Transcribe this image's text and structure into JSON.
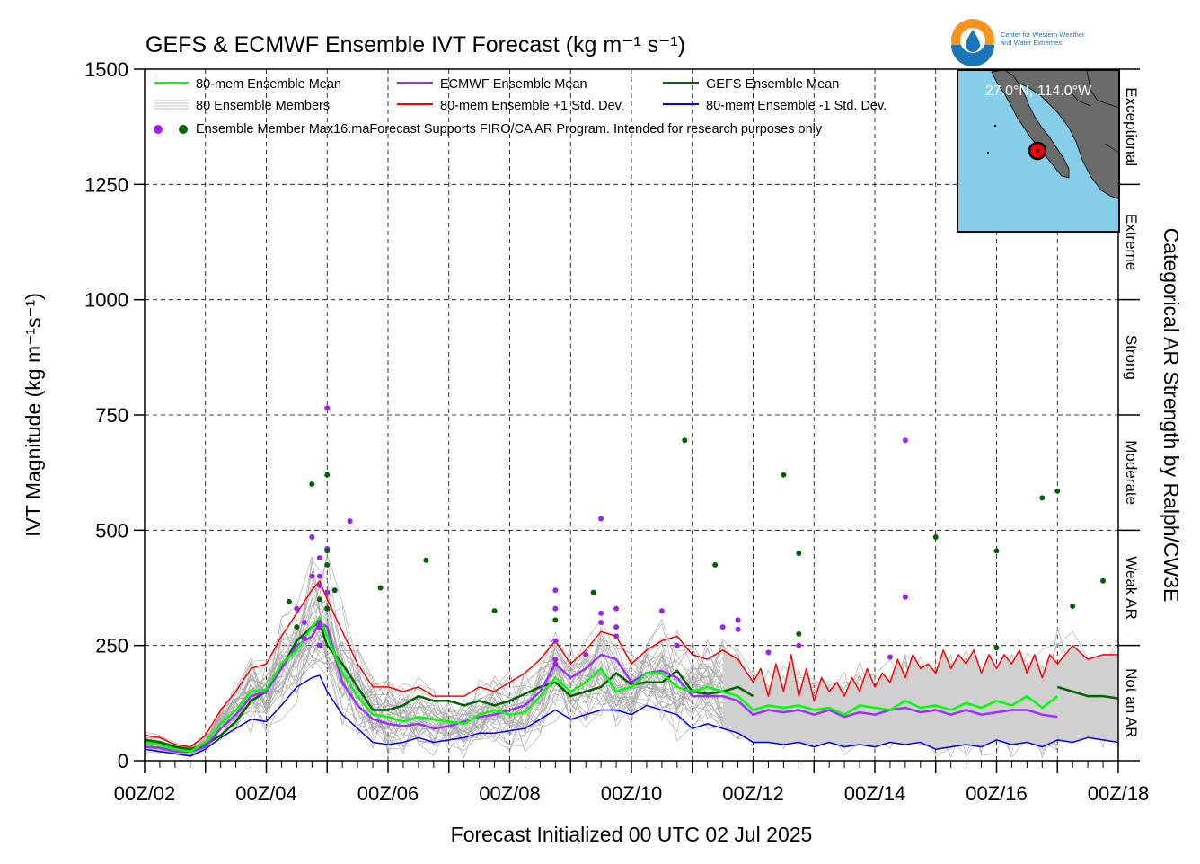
{
  "title": "GEFS & ECMWF Ensemble IVT Forecast (kg m⁻¹ s⁻¹)",
  "logo": {
    "text_line1": "Center for Western Weather",
    "text_line2": "and Water Extremes"
  },
  "inset_map": {
    "location_label": "27.0°N, 114.0°W",
    "ocean_color": "#87ceeb",
    "land_color": "#6b6b6b",
    "marker_color": "#ff0000"
  },
  "legend": {
    "row1": [
      {
        "label": "80-mem Ensemble Mean",
        "color": "#00ff00"
      },
      {
        "label": "ECMWF Ensemble Mean",
        "color": "#9b30ff"
      },
      {
        "label": "GEFS Ensemble Mean",
        "color": "#006400"
      }
    ],
    "row2": [
      {
        "label": "80 Ensemble Members",
        "color": "#aaaaaa"
      },
      {
        "label": "80-mem Ensemble +1 Std. Dev.",
        "color": "#ff0000"
      },
      {
        "label": "80-mem Ensemble -1 Std. Dev.",
        "color": "#0000ff"
      }
    ],
    "row3": "Ensemble Member Max16.maForecast Supports FIRO/CA AR Program. Intended for research purposes only",
    "dot_colors": [
      "#a020f0",
      "#006400"
    ]
  },
  "ar_categories": {
    "title": "Categorical AR Strength by Ralph/CW3E",
    "labels": [
      "Exceptional",
      "Extreme",
      "Strong",
      "Moderate",
      "Weak AR",
      "Not an AR"
    ]
  },
  "chart_data": {
    "type": "line",
    "title": "GEFS & ECMWF Ensemble IVT Forecast (kg m⁻¹ s⁻¹)",
    "xlabel": "Forecast Initialized 00 UTC 02 Jul 2025",
    "ylabel": "IVT Magnitude (kg m⁻¹s⁻¹)",
    "x_unit": "day of July 2025 (00Z)",
    "xlim": [
      2,
      18
    ],
    "ylim": [
      0,
      1500
    ],
    "yticks": [
      0,
      250,
      500,
      750,
      1000,
      1250,
      1500
    ],
    "xtick_labels": [
      "00Z/02",
      "00Z/04",
      "00Z/06",
      "00Z/08",
      "00Z/10",
      "00Z/12",
      "00Z/14",
      "00Z/16",
      "00Z/18"
    ],
    "xtick_values": [
      2,
      4,
      6,
      8,
      10,
      12,
      14,
      16,
      18
    ],
    "grid": true,
    "legend_position": "top-left",
    "series": [
      {
        "name": "80-mem Ensemble Mean",
        "color": "#00ff00",
        "x": [
          2.0,
          2.25,
          2.5,
          2.75,
          3.0,
          3.25,
          3.5,
          3.75,
          4.0,
          4.25,
          4.5,
          4.75,
          4.875,
          5.0,
          5.25,
          5.5,
          5.75,
          6.0,
          6.25,
          6.5,
          6.75,
          7.0,
          7.25,
          7.5,
          7.75,
          8.0,
          8.25,
          8.5,
          8.75,
          9.0,
          9.25,
          9.5,
          9.75,
          10.0,
          10.25,
          10.5,
          10.75,
          11.0,
          11.25,
          11.5,
          11.75,
          12.0,
          12.25,
          12.5,
          12.75,
          13.0,
          13.25,
          13.5,
          13.75,
          14.0,
          14.25,
          14.5,
          14.75,
          15.0,
          15.25,
          15.5,
          15.75,
          16.0,
          16.25,
          16.5,
          16.75,
          17.0
        ],
        "y": [
          40,
          35,
          25,
          20,
          40,
          80,
          110,
          150,
          155,
          210,
          240,
          290,
          310,
          270,
          190,
          140,
          100,
          95,
          85,
          95,
          90,
          85,
          80,
          100,
          110,
          100,
          105,
          140,
          180,
          150,
          170,
          200,
          150,
          160,
          190,
          190,
          160,
          150,
          160,
          150,
          140,
          110,
          120,
          115,
          120,
          110,
          115,
          100,
          120,
          115,
          110,
          130,
          115,
          120,
          110,
          125,
          115,
          130,
          120,
          140,
          115,
          140
        ]
      },
      {
        "name": "ECMWF Ensemble Mean",
        "color": "#9b30ff",
        "x": [
          2.0,
          2.25,
          2.5,
          2.75,
          3.0,
          3.25,
          3.5,
          3.75,
          4.0,
          4.25,
          4.5,
          4.75,
          4.875,
          5.0,
          5.25,
          5.5,
          5.75,
          6.0,
          6.25,
          6.5,
          6.75,
          7.0,
          7.25,
          7.5,
          7.75,
          8.0,
          8.25,
          8.5,
          8.75,
          9.0,
          9.25,
          9.5,
          9.75,
          10.0,
          10.25,
          10.5,
          10.75,
          11.0,
          11.25,
          11.5,
          11.75,
          12.0,
          12.25,
          12.5,
          12.75,
          13.0,
          13.25,
          13.5,
          13.75,
          14.0,
          14.25,
          14.5,
          14.75,
          15.0,
          15.25,
          15.5,
          15.75,
          16.0,
          16.25,
          16.5,
          16.75,
          17.0
        ],
        "y": [
          30,
          28,
          20,
          20,
          30,
          70,
          100,
          140,
          150,
          200,
          250,
          270,
          300,
          290,
          170,
          120,
          90,
          80,
          75,
          80,
          70,
          75,
          85,
          95,
          100,
          110,
          120,
          150,
          210,
          180,
          200,
          230,
          220,
          170,
          190,
          195,
          180,
          140,
          140,
          140,
          130,
          100,
          110,
          105,
          110,
          100,
          110,
          95,
          105,
          100,
          110,
          115,
          105,
          110,
          100,
          110,
          100,
          105,
          110,
          110,
          100,
          95
        ]
      },
      {
        "name": "GEFS Ensemble Mean",
        "color": "#006400",
        "x": [
          2.0,
          2.25,
          2.5,
          2.75,
          3.0,
          3.25,
          3.5,
          3.75,
          4.0,
          4.25,
          4.5,
          4.75,
          4.875,
          5.0,
          5.25,
          5.5,
          5.75,
          6.0,
          6.25,
          6.5,
          6.75,
          7.0,
          7.25,
          7.5,
          7.75,
          8.0,
          8.25,
          8.5,
          8.75,
          9.0,
          9.25,
          9.5,
          9.75,
          10.0,
          10.25,
          10.5,
          10.75,
          11.0,
          11.25,
          11.5,
          11.75,
          12.0,
          17.0,
          17.25,
          17.5,
          17.75,
          18.0
        ],
        "y": [
          45,
          40,
          30,
          25,
          35,
          55,
          85,
          130,
          150,
          200,
          260,
          290,
          300,
          250,
          210,
          160,
          110,
          110,
          120,
          140,
          130,
          130,
          120,
          130,
          120,
          130,
          145,
          160,
          170,
          140,
          150,
          160,
          190,
          165,
          170,
          170,
          195,
          150,
          145,
          150,
          160,
          140,
          160,
          150,
          140,
          140,
          135
        ]
      },
      {
        "name": "80-mem Ensemble +1 Std. Dev.",
        "color": "#ff0000",
        "x": [
          2.0,
          2.25,
          2.5,
          2.75,
          3.0,
          3.25,
          3.5,
          3.75,
          4.0,
          4.25,
          4.5,
          4.75,
          4.875,
          5.0,
          5.25,
          5.5,
          5.75,
          6.0,
          6.25,
          6.5,
          6.75,
          7.0,
          7.25,
          7.5,
          7.75,
          8.0,
          8.25,
          8.5,
          8.75,
          9.0,
          9.25,
          9.5,
          9.75,
          10.0,
          10.25,
          10.5,
          10.75,
          11.0,
          11.25,
          11.5,
          11.75,
          12.0,
          12.125,
          12.25,
          12.375,
          12.5,
          12.625,
          12.75,
          12.875,
          13.0,
          13.125,
          13.25,
          13.375,
          13.5,
          13.625,
          13.75,
          13.875,
          14.0,
          14.125,
          14.25,
          14.375,
          14.5,
          14.625,
          14.75,
          14.875,
          15.0,
          15.125,
          15.25,
          15.375,
          15.5,
          15.625,
          15.75,
          15.875,
          16.0,
          16.125,
          16.25,
          16.375,
          16.5,
          16.625,
          16.75,
          16.875,
          17.0,
          17.25,
          17.5,
          17.75,
          18.0
        ],
        "y": [
          55,
          50,
          35,
          30,
          55,
          110,
          150,
          200,
          210,
          270,
          320,
          370,
          390,
          350,
          280,
          210,
          160,
          160,
          150,
          160,
          140,
          140,
          140,
          160,
          150,
          170,
          190,
          220,
          260,
          210,
          240,
          280,
          270,
          210,
          240,
          260,
          270,
          230,
          220,
          240,
          220,
          170,
          200,
          140,
          210,
          150,
          230,
          140,
          200,
          130,
          180,
          150,
          170,
          140,
          180,
          150,
          200,
          160,
          190,
          170,
          220,
          180,
          230,
          200,
          210,
          190,
          240,
          200,
          230,
          210,
          240,
          190,
          230,
          200,
          230,
          210,
          240,
          190,
          230,
          180,
          230,
          210,
          250,
          220,
          230,
          230
        ]
      },
      {
        "name": "80-mem Ensemble -1 Std. Dev.",
        "color": "#0000ff",
        "x": [
          2.0,
          2.25,
          2.5,
          2.75,
          3.0,
          3.25,
          3.5,
          3.75,
          4.0,
          4.25,
          4.5,
          4.75,
          4.875,
          5.0,
          5.25,
          5.5,
          5.75,
          6.0,
          6.25,
          6.5,
          6.75,
          7.0,
          7.25,
          7.5,
          7.75,
          8.0,
          8.25,
          8.5,
          8.75,
          9.0,
          9.25,
          9.5,
          9.75,
          10.0,
          10.25,
          10.5,
          10.75,
          11.0,
          11.25,
          11.5,
          11.75,
          12.0,
          12.25,
          12.5,
          12.75,
          13.0,
          13.25,
          13.5,
          13.75,
          14.0,
          14.25,
          14.5,
          14.75,
          15.0,
          15.25,
          15.5,
          15.75,
          16.0,
          16.25,
          16.5,
          16.75,
          17.0,
          17.25,
          17.5,
          17.75,
          18.0
        ],
        "y": [
          25,
          20,
          15,
          10,
          25,
          50,
          70,
          90,
          85,
          120,
          160,
          180,
          185,
          150,
          100,
          70,
          40,
          35,
          40,
          50,
          40,
          45,
          50,
          60,
          60,
          65,
          70,
          90,
          110,
          90,
          100,
          110,
          110,
          100,
          120,
          110,
          100,
          70,
          80,
          70,
          60,
          40,
          40,
          35,
          40,
          30,
          40,
          30,
          35,
          30,
          40,
          35,
          40,
          25,
          30,
          35,
          30,
          45,
          35,
          40,
          30,
          45,
          40,
          50,
          45,
          40
        ]
      }
    ],
    "ensemble_members": {
      "name": "80 Ensemble Members",
      "color": "#aaaaaa",
      "count_drawn": 40
    },
    "member_max_points": {
      "name": "Ensemble Member Max",
      "ecmwf_color": "#a020f0",
      "gefs_color": "#006400",
      "ecmwf": [
        [
          4.5,
          330
        ],
        [
          4.625,
          300
        ],
        [
          4.625,
          265
        ],
        [
          4.75,
          400
        ],
        [
          4.75,
          485
        ],
        [
          4.875,
          380
        ],
        [
          4.875,
          440
        ],
        [
          4.875,
          400
        ],
        [
          4.875,
          300
        ],
        [
          4.875,
          290
        ],
        [
          4.875,
          250
        ],
        [
          5.0,
          765
        ],
        [
          5.0,
          460
        ],
        [
          5.0,
          365
        ],
        [
          5.0,
          330
        ],
        [
          5.375,
          520
        ],
        [
          8.75,
          370
        ],
        [
          8.75,
          330
        ],
        [
          8.75,
          260
        ],
        [
          8.75,
          220
        ],
        [
          8.75,
          210
        ],
        [
          9.25,
          230
        ],
        [
          9.5,
          525
        ],
        [
          9.5,
          320
        ],
        [
          9.5,
          300
        ],
        [
          9.75,
          330
        ],
        [
          9.75,
          290
        ],
        [
          9.75,
          270
        ],
        [
          10.5,
          325
        ],
        [
          10.75,
          250
        ],
        [
          11.5,
          290
        ],
        [
          11.75,
          305
        ],
        [
          11.75,
          285
        ],
        [
          12.25,
          235
        ],
        [
          12.75,
          250
        ],
        [
          14.25,
          225
        ],
        [
          14.5,
          695
        ],
        [
          14.5,
          355
        ]
      ],
      "gefs": [
        [
          4.375,
          345
        ],
        [
          4.5,
          290
        ],
        [
          4.75,
          600
        ],
        [
          4.875,
          350
        ],
        [
          5.0,
          620
        ],
        [
          5.0,
          455
        ],
        [
          5.0,
          425
        ],
        [
          5.0,
          330
        ],
        [
          5.125,
          370
        ],
        [
          5.875,
          375
        ],
        [
          6.625,
          435
        ],
        [
          7.75,
          325
        ],
        [
          8.75,
          305
        ],
        [
          9.375,
          365
        ],
        [
          10.875,
          695
        ],
        [
          11.375,
          425
        ],
        [
          12.5,
          620
        ],
        [
          12.75,
          450
        ],
        [
          12.75,
          275
        ],
        [
          15.0,
          485
        ],
        [
          16.0,
          455
        ],
        [
          16.0,
          245
        ],
        [
          16.75,
          570
        ],
        [
          17.0,
          585
        ],
        [
          17.25,
          335
        ],
        [
          17.75,
          390
        ]
      ]
    }
  }
}
